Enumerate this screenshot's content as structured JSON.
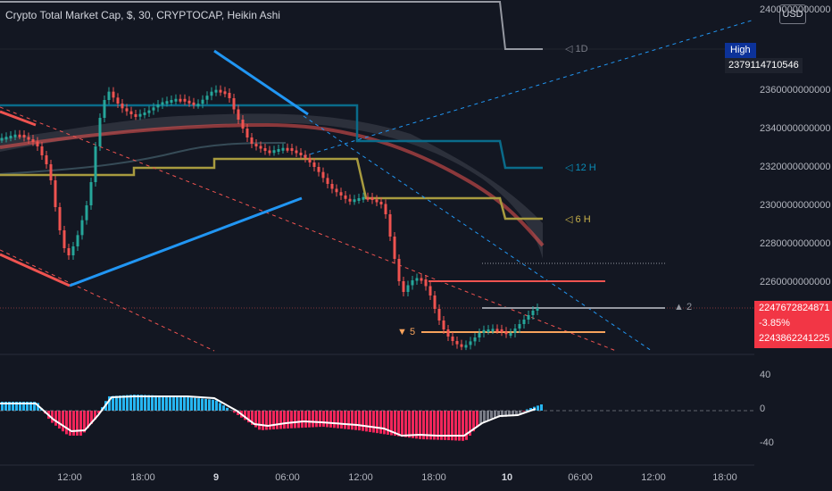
{
  "header": {
    "title": "Crypto Total Market Cap, $, 30, CRYPTOCAP, Heikin Ashi",
    "currency_button": "USD"
  },
  "price_axis": {
    "labels": [
      "2400000000000",
      "2360000000000",
      "2340000000000",
      "2320000000000",
      "2300000000000",
      "2280000000000",
      "2260000000000"
    ],
    "high_label": "High",
    "high_value": "2379114710546",
    "last_price": "2247672824871",
    "last_change": "-3.85%",
    "last_second": "2243862241225"
  },
  "oscillator_axis": {
    "labels": [
      "40",
      "0",
      "-40"
    ]
  },
  "time_axis": {
    "labels": [
      "12:00",
      "18:00",
      "9",
      "06:00",
      "12:00",
      "18:00",
      "10",
      "06:00",
      "12:00",
      "18:00"
    ]
  },
  "level_labels": {
    "one_day": "◁ 1D",
    "twelve_hour": "◁ 12 H",
    "six_hour": "◁ 6 H",
    "arrow_up": "▲ 2",
    "arrow_down": "▼ 5"
  },
  "colors": {
    "background": "#131722",
    "bull": "#26a69a",
    "bear": "#ef5350",
    "channel": "#2196f3",
    "one_day_line": "#9598a1",
    "twelve_hour_line": "#0a6b8a",
    "six_hour_line": "#a89b3f",
    "osc_pos": "#26b5f0",
    "osc_neg": "#f0265a",
    "price_tag": "#f23645"
  }
}
